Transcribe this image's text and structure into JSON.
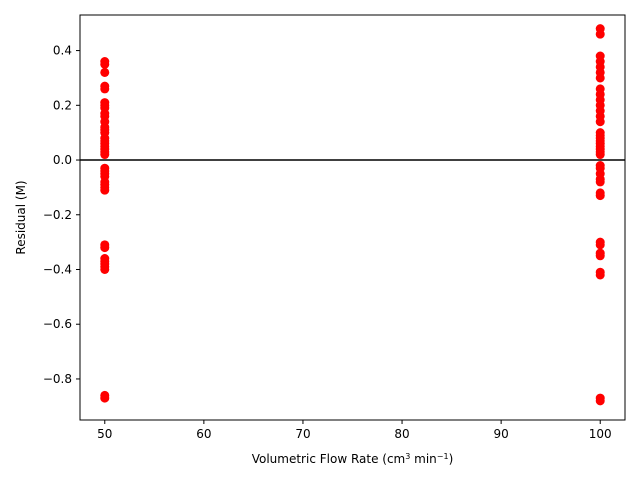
{
  "chart_data": {
    "type": "scatter",
    "title": "",
    "xlabel_parts": [
      "Volumetric Flow Rate (cm",
      "3",
      " min",
      "−1",
      ")"
    ],
    "ylabel": "Residual (M)",
    "xlim": [
      47.5,
      102.5
    ],
    "ylim": [
      -0.95,
      0.53
    ],
    "xticks": [
      50,
      60,
      70,
      80,
      90,
      100
    ],
    "xtick_labels": [
      "50",
      "60",
      "70",
      "80",
      "90",
      "100"
    ],
    "yticks": [
      -0.8,
      -0.6,
      -0.4,
      -0.2,
      0.0,
      0.2,
      0.4
    ],
    "ytick_labels": [
      "−0.8",
      "−0.6",
      "−0.4",
      "−0.2",
      "0.0",
      "0.2",
      "0.4"
    ],
    "reference_line_y": 0.0,
    "grid": false,
    "marker_color": "#ff0000",
    "line_color": "#000000",
    "points": [
      {
        "x": 50,
        "y": 0.36
      },
      {
        "x": 50,
        "y": 0.35
      },
      {
        "x": 50,
        "y": 0.32
      },
      {
        "x": 50,
        "y": 0.27
      },
      {
        "x": 50,
        "y": 0.26
      },
      {
        "x": 50,
        "y": 0.21
      },
      {
        "x": 50,
        "y": 0.2
      },
      {
        "x": 50,
        "y": 0.19
      },
      {
        "x": 50,
        "y": 0.17
      },
      {
        "x": 50,
        "y": 0.16
      },
      {
        "x": 50,
        "y": 0.14
      },
      {
        "x": 50,
        "y": 0.12
      },
      {
        "x": 50,
        "y": 0.11
      },
      {
        "x": 50,
        "y": 0.1
      },
      {
        "x": 50,
        "y": 0.08
      },
      {
        "x": 50,
        "y": 0.07
      },
      {
        "x": 50,
        "y": 0.06
      },
      {
        "x": 50,
        "y": 0.05
      },
      {
        "x": 50,
        "y": 0.04
      },
      {
        "x": 50,
        "y": 0.03
      },
      {
        "x": 50,
        "y": 0.02
      },
      {
        "x": 50,
        "y": -0.03
      },
      {
        "x": 50,
        "y": -0.04
      },
      {
        "x": 50,
        "y": -0.05
      },
      {
        "x": 50,
        "y": -0.06
      },
      {
        "x": 50,
        "y": -0.08
      },
      {
        "x": 50,
        "y": -0.09
      },
      {
        "x": 50,
        "y": -0.1
      },
      {
        "x": 50,
        "y": -0.11
      },
      {
        "x": 50,
        "y": -0.31
      },
      {
        "x": 50,
        "y": -0.32
      },
      {
        "x": 50,
        "y": -0.36
      },
      {
        "x": 50,
        "y": -0.37
      },
      {
        "x": 50,
        "y": -0.38
      },
      {
        "x": 50,
        "y": -0.39
      },
      {
        "x": 50,
        "y": -0.4
      },
      {
        "x": 50,
        "y": -0.86
      },
      {
        "x": 50,
        "y": -0.87
      },
      {
        "x": 100,
        "y": 0.48
      },
      {
        "x": 100,
        "y": 0.46
      },
      {
        "x": 100,
        "y": 0.38
      },
      {
        "x": 100,
        "y": 0.36
      },
      {
        "x": 100,
        "y": 0.34
      },
      {
        "x": 100,
        "y": 0.32
      },
      {
        "x": 100,
        "y": 0.3
      },
      {
        "x": 100,
        "y": 0.26
      },
      {
        "x": 100,
        "y": 0.24
      },
      {
        "x": 100,
        "y": 0.22
      },
      {
        "x": 100,
        "y": 0.2
      },
      {
        "x": 100,
        "y": 0.18
      },
      {
        "x": 100,
        "y": 0.16
      },
      {
        "x": 100,
        "y": 0.14
      },
      {
        "x": 100,
        "y": 0.1
      },
      {
        "x": 100,
        "y": 0.09
      },
      {
        "x": 100,
        "y": 0.08
      },
      {
        "x": 100,
        "y": 0.07
      },
      {
        "x": 100,
        "y": 0.06
      },
      {
        "x": 100,
        "y": 0.05
      },
      {
        "x": 100,
        "y": 0.04
      },
      {
        "x": 100,
        "y": 0.03
      },
      {
        "x": 100,
        "y": 0.02
      },
      {
        "x": 100,
        "y": -0.02
      },
      {
        "x": 100,
        "y": -0.03
      },
      {
        "x": 100,
        "y": -0.05
      },
      {
        "x": 100,
        "y": -0.07
      },
      {
        "x": 100,
        "y": -0.08
      },
      {
        "x": 100,
        "y": -0.12
      },
      {
        "x": 100,
        "y": -0.13
      },
      {
        "x": 100,
        "y": -0.3
      },
      {
        "x": 100,
        "y": -0.31
      },
      {
        "x": 100,
        "y": -0.34
      },
      {
        "x": 100,
        "y": -0.35
      },
      {
        "x": 100,
        "y": -0.41
      },
      {
        "x": 100,
        "y": -0.42
      },
      {
        "x": 100,
        "y": -0.87
      },
      {
        "x": 100,
        "y": -0.88
      }
    ]
  }
}
